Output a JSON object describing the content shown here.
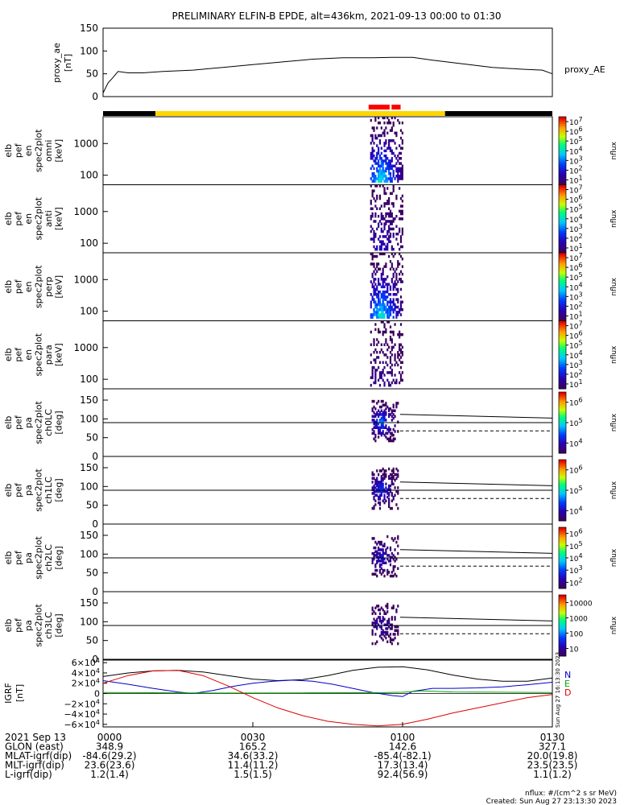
{
  "chart_data": {
    "type": "heatmap",
    "title": "PRELIMINARY ELFIN-B EPDE, alt=436km, 2021-09-13 00:00 to 01:30",
    "time_axis": {
      "range_min": [
        0,
        90
      ],
      "ticks": [
        {
          "t": 0,
          "label": "0000"
        },
        {
          "t": 30,
          "label": "0030"
        },
        {
          "t": 60,
          "label": "0100"
        },
        {
          "t": 90,
          "label": "0130"
        }
      ]
    },
    "ae_panel": {
      "ylabel": "proxy_ae",
      "yunit": "[nT]",
      "series_label": "proxy_AE",
      "ylim": [
        0,
        150
      ],
      "yticks": [
        "0",
        "50",
        "100",
        "150"
      ],
      "t": [
        0,
        1,
        2,
        3,
        5,
        8,
        12,
        18,
        24,
        30,
        36,
        42,
        48,
        54,
        58,
        62,
        66,
        72,
        78,
        84,
        88,
        90
      ],
      "values": [
        8,
        30,
        42,
        55,
        52,
        52,
        55,
        58,
        64,
        70,
        76,
        82,
        85,
        85,
        86,
        86,
        80,
        72,
        64,
        60,
        58,
        50
      ]
    },
    "status_bar": {
      "segments": [
        {
          "t0": 0,
          "t1": 10.5,
          "color": "#000000"
        },
        {
          "t0": 10.5,
          "t1": 68.5,
          "color": "#ffd700"
        },
        {
          "t0": 68.5,
          "t1": 90,
          "color": "#000000"
        }
      ],
      "marks": [
        {
          "t0": 53.2,
          "t1": 57.4,
          "color": "#ff0000"
        },
        {
          "t0": 57.8,
          "t1": 59.6,
          "color": "#ff0000"
        }
      ]
    },
    "spectral_panels": [
      {
        "labels": [
          "elb",
          "pef",
          "en",
          "spec2plot",
          "omni",
          "[keV]"
        ],
        "yticks": [
          "100",
          "1000"
        ],
        "cb_ticks": [
          "10^1",
          "10^2",
          "10^3",
          "10^4",
          "10^5",
          "10^6",
          "10^7"
        ],
        "cb_label": "nflux",
        "intensity": 1.0
      },
      {
        "labels": [
          "elb",
          "pef",
          "en",
          "spec2plot",
          "anti",
          "[keV]"
        ],
        "yticks": [
          "100",
          "1000"
        ],
        "cb_ticks": [
          "10^1",
          "10^2",
          "10^3",
          "10^4",
          "10^5",
          "10^6",
          "10^7"
        ],
        "cb_label": "nflux",
        "intensity": 0.35
      },
      {
        "labels": [
          "elb",
          "pef",
          "en",
          "spec2plot",
          "perp",
          "[keV]"
        ],
        "yticks": [
          "100",
          "1000"
        ],
        "cb_ticks": [
          "10^1",
          "10^2",
          "10^3",
          "10^4",
          "10^5",
          "10^6",
          "10^7"
        ],
        "cb_label": "nflux",
        "intensity": 1.0
      },
      {
        "labels": [
          "elb",
          "pef",
          "en",
          "spec2plot",
          "para",
          "[keV]"
        ],
        "yticks": [
          "100",
          "1000"
        ],
        "cb_ticks": [
          "10^1",
          "10^2",
          "10^3",
          "10^4",
          "10^5",
          "10^6",
          "10^7"
        ],
        "cb_label": "nflux",
        "intensity": 0.2
      }
    ],
    "pitch_panels": [
      {
        "labels": [
          "elb",
          "pef",
          "pa",
          "spec2plot",
          "ch0LC",
          "[deg]"
        ],
        "yticks": [
          "0",
          "50",
          "100",
          "150"
        ],
        "cb_ticks": [
          "10^4",
          "10^5",
          "10^6"
        ],
        "cb_label": "nflux",
        "intensity": 1.0
      },
      {
        "labels": [
          "elb",
          "pef",
          "pa",
          "spec2plot",
          "ch1LC",
          "[deg]"
        ],
        "yticks": [
          "0",
          "50",
          "100",
          "150"
        ],
        "cb_ticks": [
          "10^4",
          "10^5",
          "10^6"
        ],
        "cb_label": "nflux",
        "intensity": 0.8
      },
      {
        "labels": [
          "elb",
          "pef",
          "pa",
          "spec2plot",
          "ch2LC",
          "[deg]"
        ],
        "yticks": [
          "0",
          "50",
          "100",
          "150"
        ],
        "cb_ticks": [
          "10^2",
          "10^3",
          "10^4",
          "10^5",
          "10^6"
        ],
        "cb_label": "nflux",
        "intensity": 0.6
      },
      {
        "labels": [
          "elb",
          "pef",
          "pa",
          "spec2plot",
          "ch3LC",
          "[deg]"
        ],
        "yticks": [
          "0",
          "50",
          "100",
          "150"
        ],
        "cb_ticks": [
          "10",
          "100",
          "1000",
          "10000"
        ],
        "cb_label": "nflux",
        "intensity": 0.4
      }
    ],
    "igrf_panel": {
      "ylabel": "IGRF",
      "yunit": "[nT]",
      "ylim": [
        -65000,
        65000
      ],
      "yticks": [
        "6×10^4",
        "4×10^4",
        "2×10^4",
        "0",
        "−2×10^4",
        "−4×10^4",
        "−6×10^4"
      ],
      "legend": [
        "N",
        "E",
        "D"
      ],
      "legend_colors": [
        "#0000cc",
        "#00aa00",
        "#dd0000"
      ],
      "side_stamp": "Sun Aug 27 16:13:30 2023",
      "series": [
        {
          "name": "total",
          "color": "#000000",
          "t": [
            0,
            5,
            10,
            15,
            20,
            25,
            30,
            35,
            40,
            45,
            50,
            55,
            60,
            65,
            70,
            75,
            80,
            85,
            90
          ],
          "values": [
            33000,
            40000,
            44000,
            45000,
            42000,
            35000,
            28000,
            25000,
            27000,
            35000,
            45000,
            51000,
            52000,
            46000,
            36000,
            28000,
            24000,
            24000,
            30000
          ]
        },
        {
          "name": "N",
          "color": "#0000cc",
          "t": [
            0,
            5,
            10,
            15,
            18,
            22,
            26,
            30,
            34,
            38,
            42,
            46,
            50,
            54,
            58,
            60,
            62,
            66,
            70,
            75,
            80,
            85,
            90
          ],
          "values": [
            25000,
            18000,
            10000,
            3000,
            0,
            6000,
            14000,
            20000,
            24000,
            26000,
            24000,
            18000,
            10000,
            2000,
            -4000,
            -6000,
            4000,
            10000,
            10000,
            11000,
            13000,
            17000,
            22000
          ]
        },
        {
          "name": "E",
          "color": "#00aa00",
          "t": [
            0,
            10,
            20,
            30,
            40,
            50,
            56,
            60,
            64,
            70,
            80,
            90
          ],
          "values": [
            2000,
            1500,
            1000,
            1000,
            1200,
            1500,
            1800,
            2500,
            5000,
            3000,
            2500,
            2000
          ]
        },
        {
          "name": "D",
          "color": "#dd0000",
          "t": [
            0,
            5,
            10,
            15,
            20,
            25,
            30,
            35,
            40,
            45,
            50,
            55,
            60,
            65,
            70,
            75,
            80,
            85,
            90
          ],
          "values": [
            20000,
            35000,
            44000,
            45000,
            35000,
            15000,
            -8000,
            -28000,
            -43000,
            -54000,
            -60000,
            -63000,
            -60000,
            -50000,
            -38000,
            -28000,
            -18000,
            -8000,
            -2000
          ]
        }
      ]
    },
    "ephemeris": {
      "rows": [
        {
          "label": "2021 Sep 13",
          "values": [
            "0000",
            "0030",
            "0100",
            "0130"
          ]
        },
        {
          "label": "GLON (east)",
          "values": [
            "348.9",
            "165.2",
            "142.6",
            "327.1"
          ]
        },
        {
          "label": "MLAT-igrf(dip)",
          "values": [
            "-84.6(29.2)",
            "34.6(33.2)",
            "-85.4(-82.1)",
            "20.0(19.8)"
          ]
        },
        {
          "label": "MLT-igrf(dip)",
          "values": [
            "23.6(23.6)",
            "11.4(11.2)",
            "17.3(13.4)",
            "23.5(23.5)"
          ]
        },
        {
          "label": "L-igrf(dip)",
          "values": [
            "1.2(1.4)",
            "1.5(1.5)",
            "92.4(56.9)",
            "1.1(1.2)"
          ]
        }
      ]
    },
    "footer": {
      "units": "nflux: #/(cm^2 s sr MeV)",
      "created": "Created: Sun Aug 27 23:13:30 2023"
    }
  }
}
